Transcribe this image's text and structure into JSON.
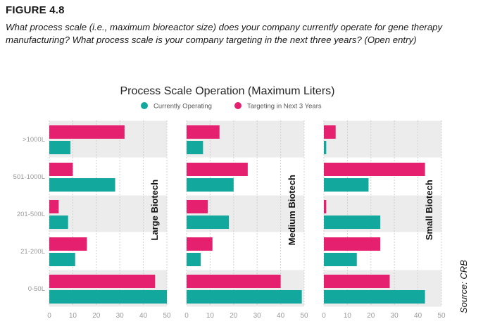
{
  "figure_label": "FIGURE 4.8",
  "question": "What process scale (i.e., maximum bioreactor size) does your company currently operate for gene therapy manufacturing? What process scale is your company targeting in the next three years? (Open entry)",
  "source": "Source: CRB",
  "colors": {
    "current": "#13a89e",
    "target": "#e5206f",
    "band": "#ececec"
  },
  "chart_data": {
    "type": "bar",
    "orientation": "horizontal",
    "title": "Process Scale Operation (Maximum Liters)",
    "categories": [
      ">1000L",
      "501-1000L",
      "201-500L",
      "21-200L",
      "0-50L"
    ],
    "xlim": [
      0,
      50
    ],
    "xticks": [
      0,
      10,
      20,
      30,
      40,
      50
    ],
    "series_names": [
      "Currently Operating",
      "Targeting in Next 3 Years"
    ],
    "legend_position": "top-center",
    "panels": [
      {
        "name": "Large Biotech",
        "series": [
          {
            "name": "Currently Operating",
            "values": [
              9,
              28,
              8,
              11,
              50
            ]
          },
          {
            "name": "Targeting in Next 3 Years",
            "values": [
              32,
              10,
              4,
              16,
              45
            ]
          }
        ]
      },
      {
        "name": "Medium Biotech",
        "series": [
          {
            "name": "Currently Operating",
            "values": [
              7,
              20,
              18,
              6,
              49
            ]
          },
          {
            "name": "Targeting in Next 3 Years",
            "values": [
              14,
              26,
              9,
              11,
              40
            ]
          }
        ]
      },
      {
        "name": "Small Biotech",
        "series": [
          {
            "name": "Currently Operating",
            "values": [
              1,
              19,
              24,
              14,
              43
            ]
          },
          {
            "name": "Targeting in Next 3 Years",
            "values": [
              5,
              43,
              1,
              24,
              28
            ]
          }
        ]
      }
    ]
  }
}
